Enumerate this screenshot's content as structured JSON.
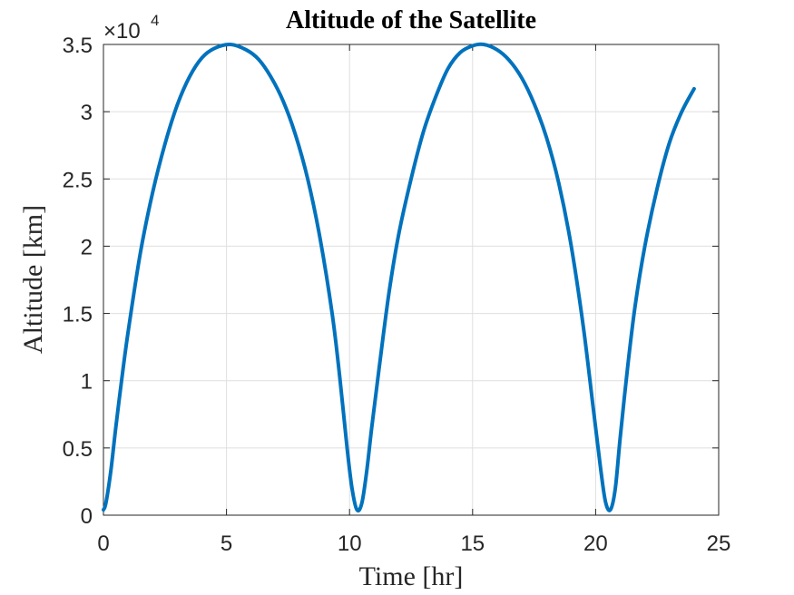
{
  "chart_data": {
    "type": "line",
    "title": "Altitude of the Satellite",
    "xlabel": "Time [hr]",
    "ylabel": "Altitude [km]",
    "xlim": [
      0,
      25
    ],
    "ylim": [
      0,
      35000
    ],
    "xticks": [
      0,
      5,
      10,
      15,
      20,
      25
    ],
    "yticks": [
      0,
      5000,
      10000,
      15000,
      20000,
      25000,
      30000,
      35000
    ],
    "xtick_labels": [
      "0",
      "5",
      "10",
      "15",
      "20",
      "25"
    ],
    "ytick_labels": [
      "0",
      "0.5",
      "1",
      "1.5",
      "2",
      "2.5",
      "3",
      "3.5"
    ],
    "y_exponent": {
      "base": "×10",
      "power": "4"
    },
    "grid": true,
    "box": true,
    "series": [
      {
        "color": "#0072BD",
        "x": [
          0.0,
          0.1,
          0.3,
          0.5,
          0.75,
          1.0,
          1.5,
          2.0,
          2.5,
          3.0,
          3.5,
          4.0,
          4.5,
          5.15,
          5.8,
          6.3,
          6.8,
          7.3,
          7.8,
          8.3,
          8.8,
          9.3,
          9.6,
          9.9,
          10.1,
          10.3,
          10.5,
          10.7,
          10.9,
          11.2,
          11.6,
          12.0,
          12.5,
          13.0,
          13.5,
          14.0,
          14.5,
          15.0,
          15.45,
          16.0,
          16.5,
          17.0,
          17.5,
          18.0,
          18.5,
          19.0,
          19.5,
          19.9,
          20.2,
          20.4,
          20.6,
          20.8,
          21.0,
          21.3,
          21.6,
          22.0,
          22.5,
          23.0,
          23.5,
          24.0
        ],
        "y": [
          400,
          900,
          3300,
          6500,
          10200,
          13600,
          19500,
          24000,
          27600,
          30500,
          32600,
          34000,
          34700,
          35000,
          34600,
          33900,
          32600,
          30800,
          28300,
          25000,
          20600,
          14900,
          10300,
          5000,
          2000,
          400,
          900,
          3300,
          6500,
          10900,
          16500,
          20900,
          25000,
          28500,
          31100,
          33200,
          34400,
          34900,
          35000,
          34600,
          33800,
          32500,
          30600,
          28100,
          24700,
          20100,
          14000,
          8000,
          3500,
          1000,
          400,
          2000,
          5800,
          11000,
          15500,
          20000,
          24300,
          27700,
          30000,
          31700
        ]
      }
    ]
  }
}
